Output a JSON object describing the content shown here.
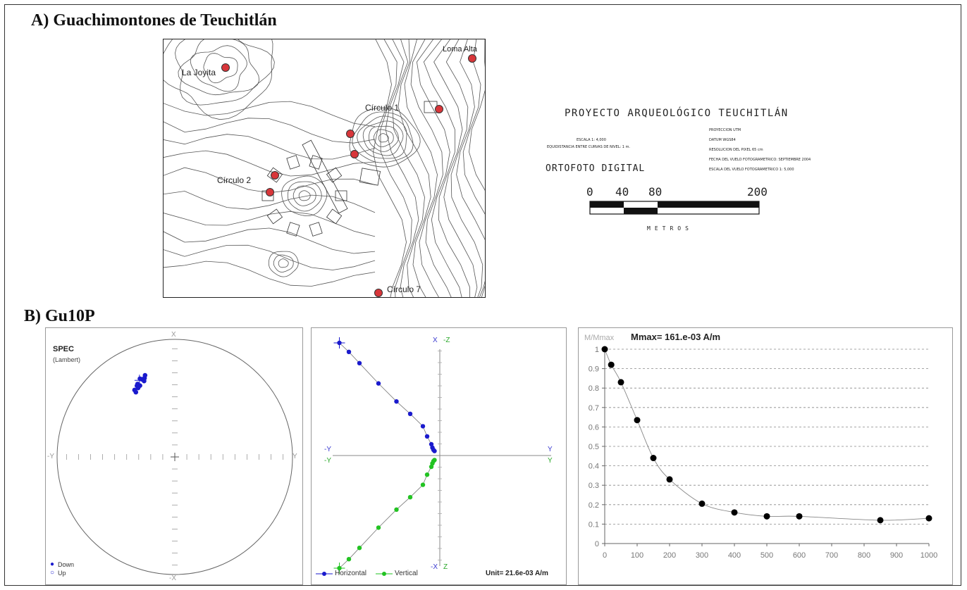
{
  "section_a": {
    "title": "A) Guachimontones de Teuchitlán",
    "map_labels": {
      "la_joyita": "La Joyita",
      "loma_alta": "Loma Alta",
      "circulo_1": "Círculo 1",
      "circulo_2": "Círculo 2",
      "circulo_7": "Círculo 7"
    },
    "project_title": "PROYECTO ARQUEOLÓGICO TEUCHITLÁN",
    "scale_note_1": "ESCALA 1: 4,000",
    "scale_note_2": "EQUIDISTANCIA ENTRE CURVAS DE NIVEL: 1 m.",
    "meta_lines": [
      "PROYECCION UTM",
      "DATUM WGS84",
      "RESOLUCION DEL PIXEL 65 cm",
      "FECHA DEL VUELO FOTOGRAMETRICO: SEPTIEMBRE 2004",
      "ESCALA DEL VUELO FOTOGRAMETRICO 1: 5,000"
    ],
    "ortofoto": "ORTOFOTO DIGITAL",
    "scale_ticks": [
      "0",
      "40",
      "80",
      "200"
    ],
    "scale_unit": "METROS",
    "colors": {
      "site_dot": "#d8363a"
    }
  },
  "section_b": {
    "title": "B) Gu10P",
    "stereonet": {
      "title": "SPEC",
      "subtitle": "(Lambert)",
      "axis_labels": {
        "top": "X",
        "bottom": "-X",
        "left": "-Y",
        "right": "Y"
      },
      "legend": {
        "down": "Down",
        "up": "Up"
      },
      "point_color": "#1a1acd"
    },
    "zijderveld": {
      "axis_labels": {
        "top_left": "X",
        "top_right": "-Z",
        "bottom_left": "-X",
        "bottom_right": "Z",
        "left_top": "-Y",
        "left_bottom": "-Y",
        "right_top": "Y",
        "right_bottom": "Y"
      },
      "legend": {
        "horizontal": "Horizontal",
        "vertical": "Vertical"
      },
      "unit": "Unit= 21.6e-03 A/m",
      "colors": {
        "horizontal": "#1a1acd",
        "vertical": "#22c322"
      }
    }
  },
  "chart_data": [
    {
      "type": "scatter",
      "title": "SPEC",
      "subtitle": "(Lambert)",
      "note": "equal-area stereonet, declination/inclination directions",
      "series": [
        {
          "name": "Down",
          "points": [
            {
              "dec": 336,
              "inc": 28
            },
            {
              "dec": 337,
              "inc": 29
            },
            {
              "dec": 338,
              "inc": 30
            },
            {
              "dec": 339,
              "inc": 29
            },
            {
              "dec": 340,
              "inc": 27
            },
            {
              "dec": 338,
              "inc": 31
            },
            {
              "dec": 332,
              "inc": 32
            },
            {
              "dec": 334,
              "inc": 33
            },
            {
              "dec": 332,
              "inc": 34
            },
            {
              "dec": 329,
              "inc": 34
            },
            {
              "dec": 329,
              "inc": 36
            },
            {
              "dec": 333,
              "inc": 31
            }
          ]
        }
      ]
    },
    {
      "type": "line",
      "note": "orthogonal vector (Zijderveld) projection",
      "series": [
        {
          "name": "Horizontal",
          "points": [
            [
              1.0,
              -0.95
            ],
            [
              0.92,
              -0.86
            ],
            [
              0.82,
              -0.76
            ],
            [
              0.64,
              -0.58
            ],
            [
              0.48,
              -0.41
            ],
            [
              0.37,
              -0.28
            ],
            [
              0.26,
              -0.16
            ],
            [
              0.17,
              -0.12
            ],
            [
              0.1,
              -0.08
            ],
            [
              0.07,
              -0.07
            ],
            [
              0.05,
              -0.06
            ],
            [
              0.04,
              -0.05
            ]
          ]
        },
        {
          "name": "Vertical",
          "points": [
            [
              -1.0,
              -0.95
            ],
            [
              -0.92,
              -0.86
            ],
            [
              -0.82,
              -0.76
            ],
            [
              -0.64,
              -0.58
            ],
            [
              -0.48,
              -0.41
            ],
            [
              -0.37,
              -0.28
            ],
            [
              -0.26,
              -0.16
            ],
            [
              -0.17,
              -0.12
            ],
            [
              -0.1,
              -0.08
            ],
            [
              -0.07,
              -0.07
            ],
            [
              -0.05,
              -0.06
            ],
            [
              -0.04,
              -0.05
            ]
          ]
        }
      ],
      "unit": "Unit= 21.6e-03 A/m"
    },
    {
      "type": "line",
      "title": "Mmax= 161.e-03 A/m",
      "ylabel": "M/Mmax",
      "x": [
        0,
        20,
        50,
        100,
        150,
        200,
        300,
        400,
        500,
        600,
        850,
        1000
      ],
      "values": [
        1.0,
        0.92,
        0.83,
        0.635,
        0.44,
        0.33,
        0.205,
        0.16,
        0.14,
        0.14,
        0.12,
        0.13
      ],
      "xlim": [
        0,
        1000
      ],
      "ylim": [
        0,
        1
      ],
      "x_ticks": [
        "0",
        "100",
        "200",
        "300",
        "400",
        "500",
        "600",
        "700",
        "800",
        "900",
        "1000"
      ],
      "y_ticks": [
        "0",
        "0.1",
        "0.2",
        "0.3",
        "0.4",
        "0.5",
        "0.6",
        "0.7",
        "0.8",
        "0.9",
        "1"
      ],
      "grid": "horizontal dashed",
      "colors": {
        "points": "#000000",
        "line": "#888888"
      }
    }
  ]
}
